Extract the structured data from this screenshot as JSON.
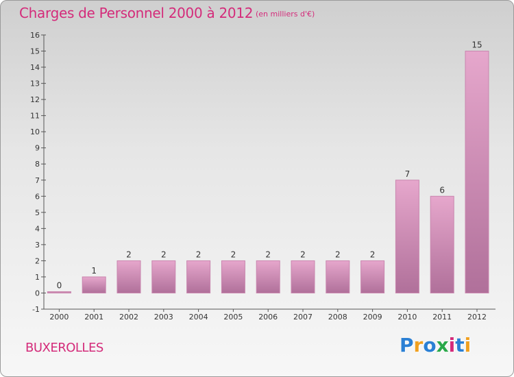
{
  "title": "Charges de Personnel 2000 à 2012",
  "subtitle": "(en milliers d'€)",
  "commune": "BUXEROLLES",
  "brand": {
    "text": "Proxiti",
    "letters": [
      "P",
      "r",
      "o",
      "x",
      "i",
      "t",
      "i"
    ],
    "colors": [
      "#2a7fd4",
      "#f0a020",
      "#2a7fd4",
      "#2aa84a",
      "#d42b7a",
      "#2a7fd4",
      "#f0a020"
    ]
  },
  "colors": {
    "accent": "#d42b7a",
    "bar_top": "#e6a7cc",
    "bar_bottom": "#b0709a"
  },
  "chart_data": {
    "type": "bar",
    "categories": [
      "2000",
      "2001",
      "2002",
      "2003",
      "2004",
      "2005",
      "2006",
      "2007",
      "2008",
      "2009",
      "2010",
      "2011",
      "2012"
    ],
    "values": [
      0,
      1,
      2,
      2,
      2,
      2,
      2,
      2,
      2,
      2,
      7,
      6,
      15
    ],
    "labels": [
      "0",
      "1",
      "2",
      "2",
      "2",
      "2",
      "2",
      "2",
      "2",
      "2",
      "7",
      "6",
      "15"
    ],
    "ylim": [
      -1,
      16
    ],
    "yticks": [
      -1,
      0,
      1,
      2,
      3,
      4,
      5,
      6,
      7,
      8,
      9,
      10,
      11,
      12,
      13,
      14,
      15,
      16
    ],
    "ytick_labels": [
      "-1",
      "0",
      "1",
      "2",
      "3",
      "4",
      "5",
      "6",
      "7",
      "8",
      "9",
      "10",
      "11",
      "12",
      "13",
      "14",
      "15",
      "16"
    ],
    "xlabel": "",
    "ylabel": "",
    "grid": false
  }
}
